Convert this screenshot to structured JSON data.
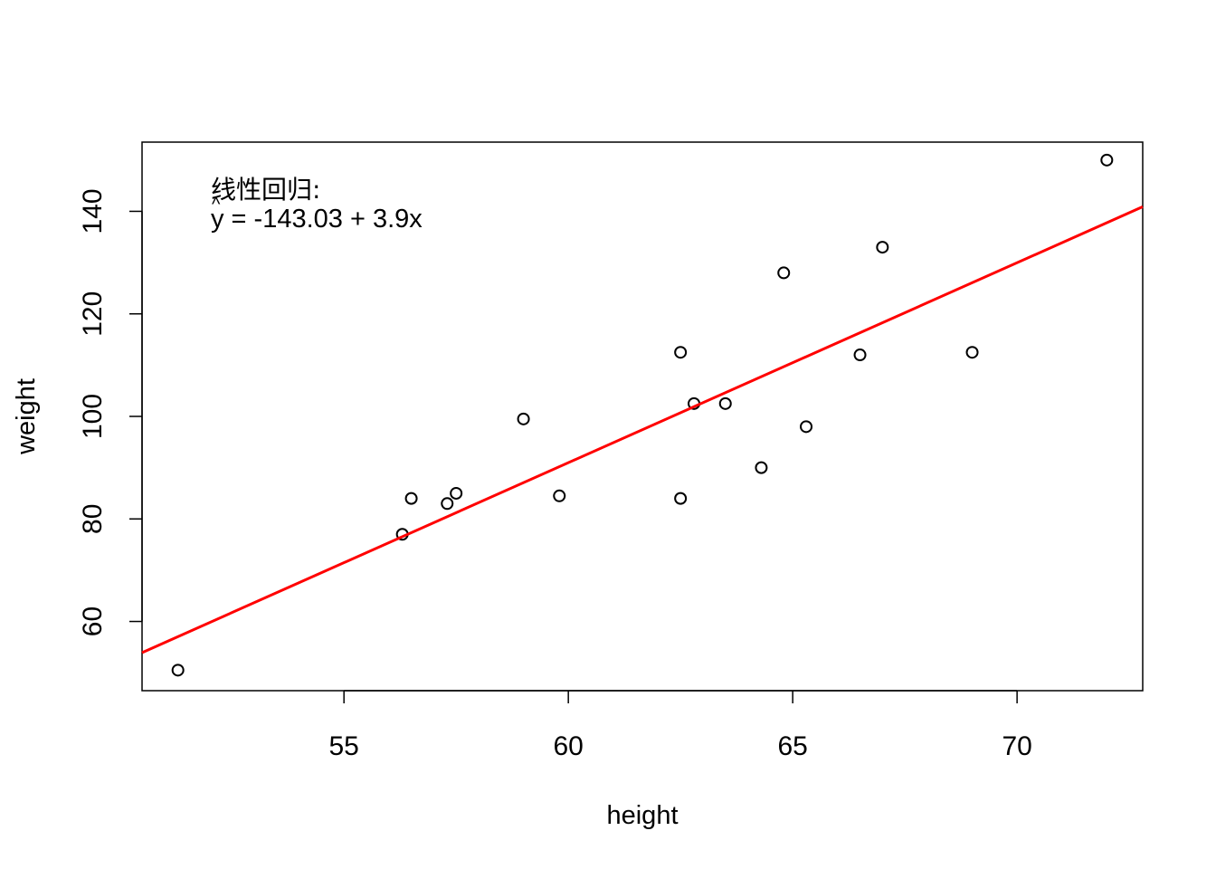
{
  "chart_data": {
    "type": "scatter",
    "xlabel": "height",
    "ylabel": "weight",
    "xlim": [
      50.5,
      72.8
    ],
    "ylim": [
      46.5,
      153.5
    ],
    "x_ticks": [
      55,
      60,
      65,
      70
    ],
    "y_ticks": [
      60,
      80,
      100,
      120,
      140
    ],
    "grid": false,
    "box": true,
    "points": [
      {
        "x": 51.3,
        "y": 50.5
      },
      {
        "x": 56.3,
        "y": 77.0
      },
      {
        "x": 56.5,
        "y": 84.0
      },
      {
        "x": 57.3,
        "y": 83.0
      },
      {
        "x": 57.5,
        "y": 85.0
      },
      {
        "x": 59.0,
        "y": 99.5
      },
      {
        "x": 59.8,
        "y": 84.5
      },
      {
        "x": 62.5,
        "y": 112.5
      },
      {
        "x": 62.5,
        "y": 84.0
      },
      {
        "x": 62.8,
        "y": 102.5
      },
      {
        "x": 63.5,
        "y": 102.5
      },
      {
        "x": 64.3,
        "y": 90.0
      },
      {
        "x": 64.8,
        "y": 128.0
      },
      {
        "x": 65.3,
        "y": 98.0
      },
      {
        "x": 66.5,
        "y": 112.0
      },
      {
        "x": 67.0,
        "y": 133.0
      },
      {
        "x": 69.0,
        "y": 112.5
      },
      {
        "x": 72.0,
        "y": 150.0
      }
    ],
    "regression_line": {
      "intercept": -143.03,
      "slope": 3.9,
      "color": "#ff0000"
    },
    "annotation": {
      "line1": "线性回归:",
      "line2": "y = -143.03 + 3.9x",
      "hat": "^"
    }
  }
}
